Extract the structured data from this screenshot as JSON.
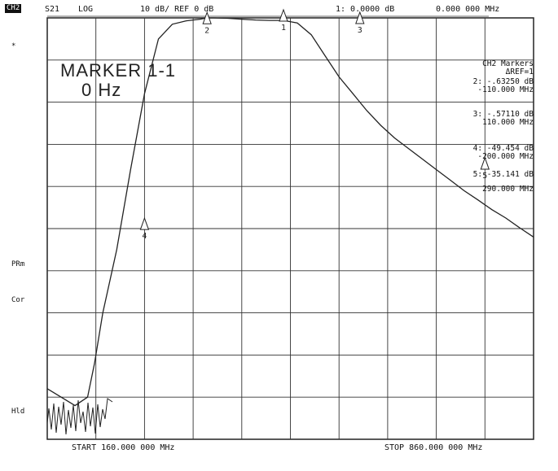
{
  "header": {
    "channel": "CH2",
    "param": "S21",
    "format": "LOG",
    "scale": "10 dB/ REF 0 dB",
    "marker_value": "1: 0.0000 dB",
    "marker_freq": "0.000 000 MHz"
  },
  "side_labels": [
    "*",
    "PRm",
    "Cor",
    "Hld"
  ],
  "marker_box": {
    "line1": "MARKER 1-1",
    "line2": "0 Hz"
  },
  "readout": {
    "title1": "CH2 Markers",
    "title2": "ΔREF=1",
    "rows": [
      {
        "a": "2: -.63250 dB",
        "b": "-110.000 MHz"
      },
      {
        "a": "3: -.57110 dB",
        "b": "110.000 MHz"
      },
      {
        "a": "4: -49.454 dB",
        "b": "-200.000 MHz"
      },
      {
        "a": "5: -35.141 dB",
        "b": "290.000 MHz"
      }
    ]
  },
  "footer": {
    "start": "START 160.000 000 MHz",
    "stop": "STOP 860.000 000 MHz"
  },
  "chart_data": {
    "type": "line",
    "x_unit": "MHz",
    "xlim": [
      160,
      860
    ],
    "ylim": [
      -100,
      0
    ],
    "y_per_div": 10,
    "grid": true,
    "series": [
      {
        "x": [
          160,
          200,
          218,
          228,
          240,
          260,
          280,
          300,
          320,
          340,
          360,
          380,
          390,
          400,
          420,
          440,
          460,
          480,
          500,
          520,
          540,
          560,
          580,
          600,
          610,
          620,
          640,
          660,
          680,
          700,
          720,
          740,
          760,
          780,
          800,
          820,
          840,
          860
        ],
        "y": [
          -88,
          -92,
          -90,
          -82,
          -70,
          -55,
          -36,
          -18,
          -5,
          -1.5,
          -0.7,
          -0.3,
          0,
          0,
          -0.1,
          -0.3,
          -0.5,
          -0.6,
          -0.6,
          -1.2,
          -4,
          -9,
          -14,
          -18,
          -20,
          -22,
          -25.5,
          -28.5,
          -31,
          -33.5,
          -36,
          -38.5,
          -41,
          -43.2,
          -45.5,
          -47.5,
          -49.8,
          -52
        ]
      }
    ],
    "markers": [
      {
        "id": "1",
        "x": 500,
        "y": 0
      },
      {
        "id": "2",
        "x": 390,
        "y": -0.63
      },
      {
        "id": "3",
        "x": 610,
        "y": -0.57
      },
      {
        "id": "4",
        "x": 300,
        "y": -49.45
      },
      {
        "id": "5",
        "x": 790,
        "y": -35.14
      }
    ]
  }
}
